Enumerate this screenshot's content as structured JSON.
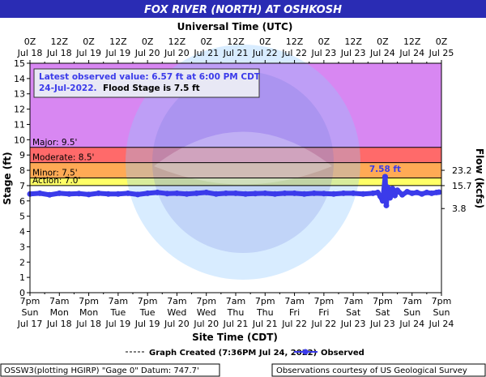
{
  "header": {
    "title": "FOX RIVER (NORTH) AT OSHKOSH",
    "utc_axis_title": "Universal Time (UTC)",
    "cdt_axis_title": "Site Time (CDT)"
  },
  "info_box": {
    "line1": "Latest observed value:  6.57 ft at 6:00 PM CDT",
    "line2a": "24-Jul-2022.",
    "line2b": "Flood Stage is 7.5 ft"
  },
  "legend": {
    "graph_created": "Graph Created (7:36PM Jul 24, 2022)",
    "observed": "Observed"
  },
  "footer": {
    "left": "OSSW3(plotting HGIRP) \"Gage 0\" Datum: 747.7'",
    "right": "Observations courtesy of US Geological Survey"
  },
  "colors": {
    "header_bg": "#2a2cb4",
    "major_band": "#d887f2",
    "moderate_band": "#ff6a6a",
    "minor_band": "#ffaa55",
    "action_band": "#ffff66",
    "normal_band": "#ffffff",
    "series": "#3b3bea",
    "info_box_bg": "#e8e8f5"
  },
  "chart_data": {
    "type": "line",
    "ylabel": "Stage (ft)",
    "y2label": "Flow (kcfs)",
    "ylim": [
      0,
      15
    ],
    "yticks": [
      0,
      1,
      2,
      3,
      4,
      5,
      6,
      7,
      8,
      9,
      10,
      11,
      12,
      13,
      14,
      15
    ],
    "y2ticks": [
      {
        "stage": 8,
        "label": "23.2"
      },
      {
        "stage": 7,
        "label": "15.7"
      },
      {
        "stage": 5.5,
        "label": "3.8"
      }
    ],
    "xlim_hours": [
      0,
      168
    ],
    "flood_categories": [
      {
        "name": "Major",
        "label": "Major: 9.5'",
        "stage": 9.5
      },
      {
        "name": "Moderate",
        "label": "Moderate: 8.5'",
        "stage": 8.5
      },
      {
        "name": "Minor",
        "label": "Minor: 7.5'",
        "stage": 7.5
      },
      {
        "name": "Action",
        "label": "Action: 7.0'",
        "stage": 7.0
      }
    ],
    "top_axis": [
      {
        "t": [
          "0Z",
          "Jul 18"
        ]
      },
      {
        "t": [
          "12Z",
          "Jul 18"
        ]
      },
      {
        "t": [
          "0Z",
          "Jul 19"
        ]
      },
      {
        "t": [
          "12Z",
          "Jul 19"
        ]
      },
      {
        "t": [
          "0Z",
          "Jul 20"
        ]
      },
      {
        "t": [
          "12Z",
          "Jul 20"
        ]
      },
      {
        "t": [
          "0Z",
          "Jul 21"
        ]
      },
      {
        "t": [
          "12Z",
          "Jul 21"
        ]
      },
      {
        "t": [
          "0Z",
          "Jul 22"
        ]
      },
      {
        "t": [
          "12Z",
          "Jul 22"
        ]
      },
      {
        "t": [
          "0Z",
          "Jul 23"
        ]
      },
      {
        "t": [
          "12Z",
          "Jul 23"
        ]
      },
      {
        "t": [
          "0Z",
          "Jul 24"
        ]
      },
      {
        "t": [
          "12Z",
          "Jul 24"
        ]
      },
      {
        "t": [
          "0Z",
          "Jul 25"
        ]
      }
    ],
    "bottom_axis": [
      {
        "t": [
          "7pm",
          "Sun",
          "Jul 17"
        ]
      },
      {
        "t": [
          "7am",
          "Mon",
          "Jul 18"
        ]
      },
      {
        "t": [
          "7pm",
          "Mon",
          "Jul 18"
        ]
      },
      {
        "t": [
          "7am",
          "Tue",
          "Jul 19"
        ]
      },
      {
        "t": [
          "7pm",
          "Tue",
          "Jul 19"
        ]
      },
      {
        "t": [
          "7am",
          "Wed",
          "Jul 20"
        ]
      },
      {
        "t": [
          "7pm",
          "Wed",
          "Jul 20"
        ]
      },
      {
        "t": [
          "7am",
          "Thu",
          "Jul 21"
        ]
      },
      {
        "t": [
          "7pm",
          "Thu",
          "Jul 21"
        ]
      },
      {
        "t": [
          "7am",
          "Fri",
          "Jul 22"
        ]
      },
      {
        "t": [
          "7pm",
          "Fri",
          "Jul 22"
        ]
      },
      {
        "t": [
          "7am",
          "Sat",
          "Jul 23"
        ]
      },
      {
        "t": [
          "7pm",
          "Sat",
          "Jul 23"
        ]
      },
      {
        "t": [
          "7am",
          "Sun",
          "Jul 24"
        ]
      },
      {
        "t": [
          "7pm",
          "Sun",
          "Jul 24"
        ]
      }
    ],
    "peak": {
      "hour": 145,
      "stage": 7.58,
      "label": "7.58  ft"
    },
    "series": [
      {
        "name": "Observed",
        "hours": [
          0,
          4,
          8,
          12,
          16,
          20,
          24,
          28,
          32,
          36,
          40,
          44,
          48,
          52,
          56,
          60,
          64,
          68,
          72,
          76,
          80,
          84,
          88,
          92,
          96,
          100,
          104,
          108,
          112,
          116,
          120,
          124,
          128,
          132,
          136,
          140,
          142,
          143,
          144,
          145,
          145.5,
          146,
          147,
          148,
          149,
          150,
          152,
          154,
          156,
          158,
          160,
          162,
          164,
          166,
          167
        ],
        "stage": [
          6.45,
          6.5,
          6.4,
          6.5,
          6.45,
          6.48,
          6.42,
          6.5,
          6.45,
          6.45,
          6.5,
          6.42,
          6.5,
          6.55,
          6.48,
          6.5,
          6.45,
          6.5,
          6.55,
          6.45,
          6.5,
          6.5,
          6.45,
          6.48,
          6.5,
          6.45,
          6.5,
          6.5,
          6.45,
          6.5,
          6.48,
          6.45,
          6.5,
          6.5,
          6.45,
          6.5,
          6.55,
          6.3,
          6.0,
          7.58,
          5.7,
          6.9,
          6.2,
          6.8,
          6.35,
          6.7,
          6.4,
          6.6,
          6.5,
          6.55,
          6.45,
          6.55,
          6.5,
          6.55,
          6.57
        ]
      }
    ]
  }
}
